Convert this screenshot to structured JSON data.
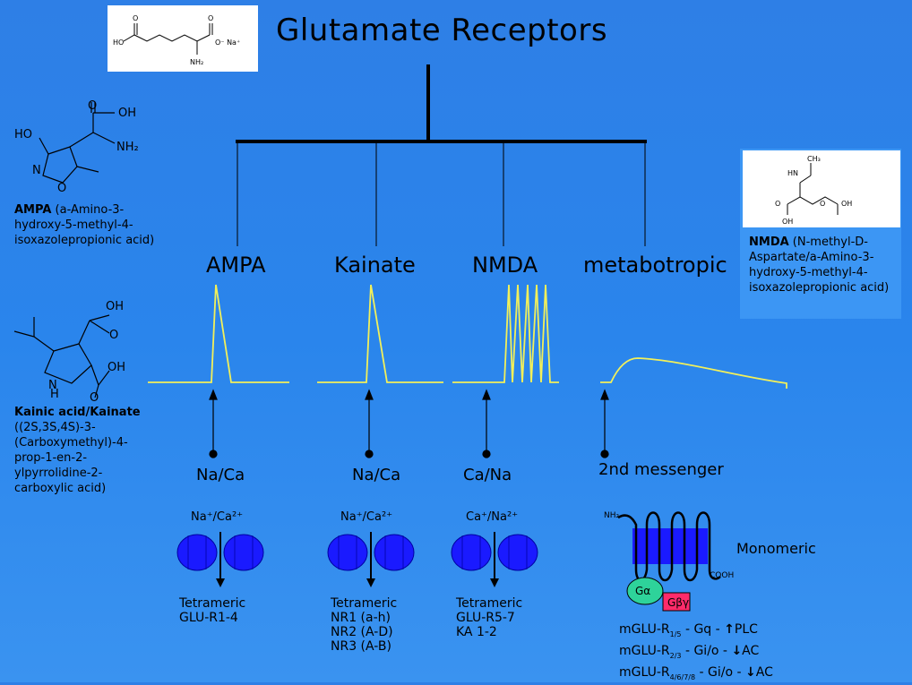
{
  "title": "Glutamate Receptors",
  "glutamate_structure": {
    "labels": {
      "ho": "HO",
      "o1": "O",
      "o2": "O",
      "na": "O⁻ Na⁺",
      "nh2": "NH₂"
    }
  },
  "receptors": [
    {
      "name": "AMPA",
      "ion": "Na/Ca",
      "ion_detail": "Na⁺/Ca²⁺",
      "structure": [
        "Tetrameric",
        "GLU-R1-4"
      ]
    },
    {
      "name": "Kainate",
      "ion": "Na/Ca",
      "ion_detail": "Na⁺/Ca²⁺",
      "structure": [
        "Tetrameric",
        "NR1 (a-h)",
        "NR2 (A-D)",
        "NR3 (A-B)"
      ]
    },
    {
      "name": "NMDA",
      "ion": "Ca/Na",
      "ion_detail": "Ca⁺/Na²⁺",
      "structure": [
        "Tetrameric",
        "GLU-R5-7",
        "KA 1-2"
      ]
    },
    {
      "name": "metabotropic",
      "ion": "2nd messenger"
    }
  ],
  "ampa_note": {
    "bold": "AMPA",
    "text": " (a-Amino-3-hydroxy-5-methyl-4-isoxazolepropionic acid)"
  },
  "ampa_structure": {
    "labels": {
      "o": "O",
      "oh": "OH",
      "ho": "HO",
      "nh2": "NH₂",
      "n": "N",
      "o_ring": "O"
    }
  },
  "kainic_note": {
    "bold": "Kainic acid/Kainate",
    "text": " ((2S,3S,4S)-3-(Carboxymethyl)-4-prop-1-en-2-ylpyrrolidine-2-carboxylic acid)"
  },
  "kainic_structure": {
    "labels": {
      "oh1": "OH",
      "o1": "O",
      "nh": "N",
      "h": "H",
      "o2": "O",
      "oh2": "OH"
    }
  },
  "nmda_note": {
    "bold": "NMDA",
    "text": " (N-methyl-D-Aspartate/a-Amino-3-hydroxy-5-methyl-4-isoxazolepropionic acid)"
  },
  "nmda_structure": {
    "labels": {
      "ch3": "CH₃",
      "hn": "HN",
      "o1": "O",
      "o2": "O",
      "oh1": "OH",
      "oh2": "OH"
    }
  },
  "metabotropic": {
    "label": "Monomeric",
    "nh2": "NH₂",
    "cooh": "COOH",
    "galpha": "Gα",
    "gbg": "Gβγ",
    "rows": [
      {
        "name": "mGLU-R",
        "sub": "1/5",
        "text": " - Gq - ",
        "arrow": "↑",
        "effect": "PLC"
      },
      {
        "name": "mGLU-R",
        "sub": "2/3",
        "text": " - Gi/o - ",
        "arrow": "↓",
        "effect": "AC"
      },
      {
        "name": "mGLU-R",
        "sub": "4/6/7/8",
        "text": " - Gi/o - ",
        "arrow": "↓",
        "effect": "AC"
      }
    ]
  },
  "colors": {
    "background": "#2e7fe6",
    "trace": "#f2f05a",
    "channel": "#1a1aff",
    "galpha": "#2ed39a",
    "gbg": "#ff2b6a"
  }
}
